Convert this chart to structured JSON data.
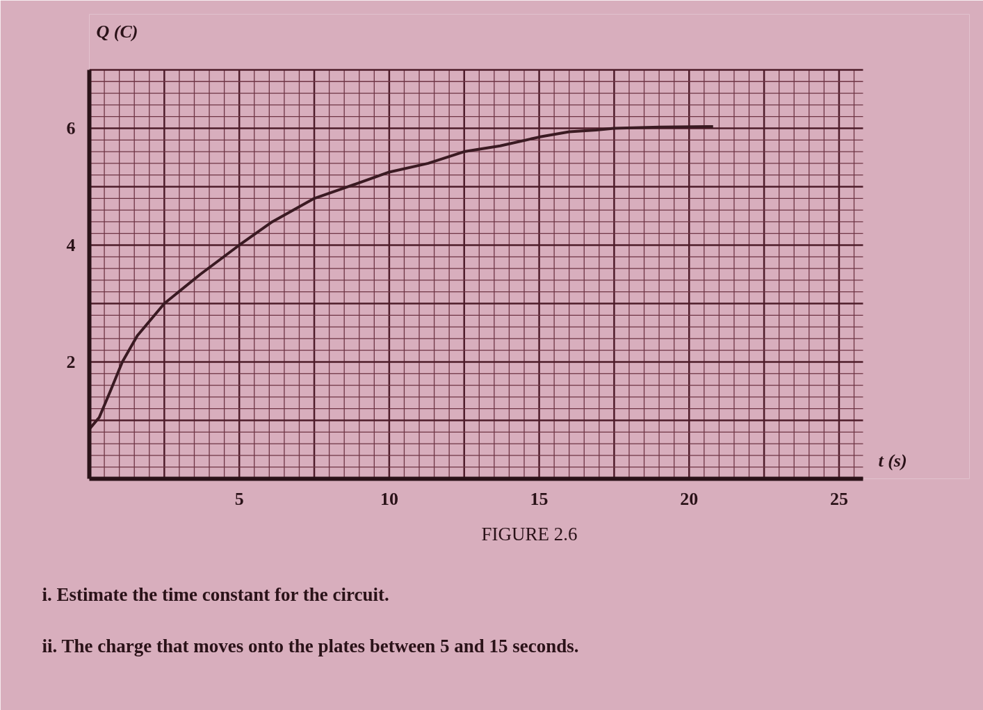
{
  "chart_data": {
    "type": "line",
    "title": "FIGURE 2.6",
    "xlabel": "t (s)",
    "ylabel": "Q (C)",
    "x": [
      0,
      0.33,
      0.7,
      1.1,
      1.6,
      2.5,
      3.7,
      5,
      6.1,
      7.5,
      8.9,
      10,
      11.3,
      12.5,
      13.7,
      15,
      16,
      16.9,
      17.5,
      19,
      20.8
    ],
    "series": [
      {
        "color": "#3a1a22",
        "values": [
          0.85,
          1.05,
          1.5,
          2.0,
          2.45,
          3.0,
          3.5,
          4.0,
          4.4,
          4.8,
          5.05,
          5.25,
          5.4,
          5.6,
          5.7,
          5.85,
          5.94,
          5.97,
          6.0,
          6.02,
          6.03
        ]
      }
    ],
    "xlim": [
      0,
      25.8
    ],
    "ylim": [
      0,
      7
    ],
    "xticks": [
      {
        "value": 0,
        "label": null
      },
      {
        "value": 0.5,
        "label": null
      },
      {
        "value": 1,
        "label": null
      },
      {
        "value": 1.5,
        "label": null
      },
      {
        "value": 2,
        "label": null
      },
      {
        "value": 2.5,
        "label": null
      },
      {
        "value": 3,
        "label": null
      },
      {
        "value": 3.5,
        "label": null
      },
      {
        "value": 4,
        "label": null
      },
      {
        "value": 4.5,
        "label": null
      },
      5,
      {
        "value": 5.5,
        "label": null
      },
      {
        "value": 6,
        "label": null
      },
      {
        "value": 6.5,
        "label": null
      },
      {
        "value": 7,
        "label": null
      },
      {
        "value": 7.5,
        "label": null
      },
      {
        "value": 8,
        "label": null
      },
      {
        "value": 8.5,
        "label": null
      },
      {
        "value": 9,
        "label": null
      },
      {
        "value": 9.5,
        "label": null
      },
      10,
      {
        "value": 10.5,
        "label": null
      },
      {
        "value": 11,
        "label": null
      },
      {
        "value": 11.5,
        "label": null
      },
      {
        "value": 12,
        "label": null
      },
      {
        "value": 12.5,
        "label": null
      },
      {
        "value": 13,
        "label": null
      },
      {
        "value": 13.5,
        "label": null
      },
      {
        "value": 14,
        "label": null
      },
      {
        "value": 14.5,
        "label": null
      },
      15,
      {
        "value": 15.5,
        "label": null
      },
      {
        "value": 16,
        "label": null
      },
      {
        "value": 16.5,
        "label": null
      },
      {
        "value": 17,
        "label": null
      },
      {
        "value": 17.5,
        "label": null
      },
      {
        "value": 18,
        "label": null
      },
      {
        "value": 18.5,
        "label": null
      },
      {
        "value": 19,
        "label": null
      },
      {
        "value": 19.5,
        "label": null
      },
      20,
      {
        "value": 20.5,
        "label": null
      },
      {
        "value": 21,
        "label": null
      },
      {
        "value": 21.5,
        "label": null
      },
      {
        "value": 22,
        "label": null
      },
      {
        "value": 22.5,
        "label": null
      },
      {
        "value": 23,
        "label": null
      },
      {
        "value": 23.5,
        "label": null
      },
      {
        "value": 24,
        "label": null
      },
      {
        "value": 24.5,
        "label": null
      },
      25,
      {
        "value": 25.5,
        "label": null
      }
    ],
    "yticks": [
      {
        "value": 0,
        "label": null
      },
      {
        "value": 0.2,
        "label": null
      },
      {
        "value": 0.4,
        "label": null
      },
      {
        "value": 0.6,
        "label": null
      },
      {
        "value": 0.8,
        "label": null
      },
      {
        "value": 1,
        "label": null
      },
      {
        "value": 1.2,
        "label": null
      },
      {
        "value": 1.4,
        "label": null
      },
      {
        "value": 1.6,
        "label": null
      },
      {
        "value": 1.8,
        "label": null
      },
      2,
      {
        "value": 2.2,
        "label": null
      },
      {
        "value": 2.4,
        "label": null
      },
      {
        "value": 2.6,
        "label": null
      },
      {
        "value": 2.8,
        "label": null
      },
      {
        "value": 3,
        "label": null
      },
      {
        "value": 3.2,
        "label": null
      },
      {
        "value": 3.4,
        "label": null
      },
      {
        "value": 3.6,
        "label": null
      },
      {
        "value": 3.8,
        "label": null
      },
      4,
      {
        "value": 4.2,
        "label": null
      },
      {
        "value": 4.4,
        "label": null
      },
      {
        "value": 4.6,
        "label": null
      },
      {
        "value": 4.8,
        "label": null
      },
      {
        "value": 5,
        "label": null
      },
      {
        "value": 5.2,
        "label": null
      },
      {
        "value": 5.4,
        "label": null
      },
      {
        "value": 5.6,
        "label": null
      },
      {
        "value": 5.8,
        "label": null
      },
      6,
      {
        "value": 6.2,
        "label": null
      },
      {
        "value": 6.4,
        "label": null
      },
      {
        "value": 6.6,
        "label": null
      },
      {
        "value": 6.8,
        "label": null
      },
      {
        "value": 7,
        "label": null
      }
    ],
    "grid": true,
    "line_style": "solid",
    "annotations": [
      "i. Estimate the time constant for the circuit.",
      "ii. The charge that moves onto the plates between 5 and 15 seconds."
    ]
  }
}
